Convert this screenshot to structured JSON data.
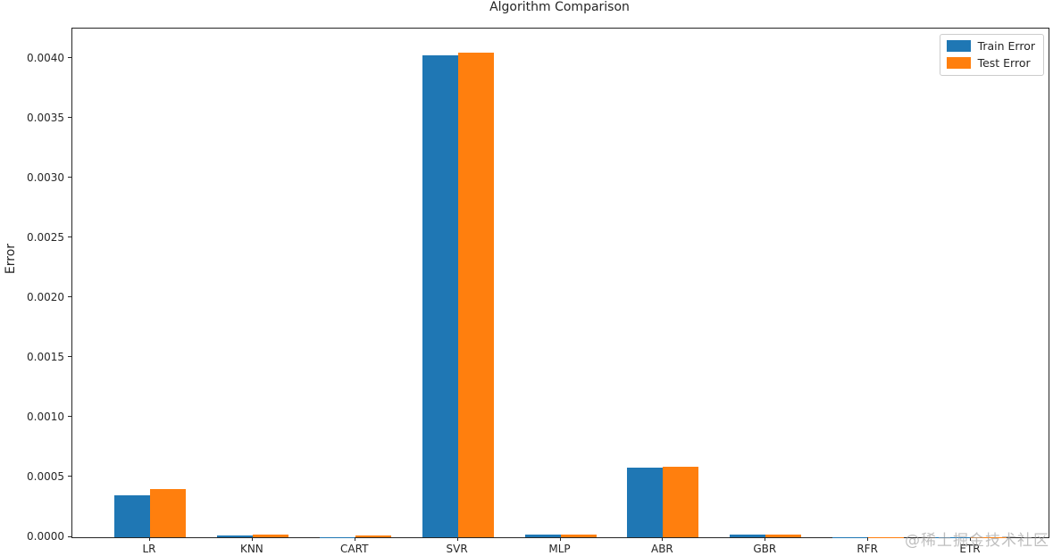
{
  "chart_data": {
    "type": "bar",
    "title": "Algorithm Comparison",
    "xlabel": "",
    "ylabel": "Error",
    "categories": [
      "LR",
      "KNN",
      "CART",
      "SVR",
      "MLP",
      "ABR",
      "GBR",
      "RFR",
      "ETR"
    ],
    "series": [
      {
        "name": "Train Error",
        "color": "#1f77b4",
        "values": [
          0.00035,
          1.5e-05,
          1e-06,
          0.00403,
          2.2e-05,
          0.00058,
          2.2e-05,
          1e-06,
          1e-06
        ]
      },
      {
        "name": "Test Error",
        "color": "#ff7f0e",
        "values": [
          0.0004,
          2e-05,
          1.3e-05,
          0.00405,
          2e-05,
          0.00059,
          2e-05,
          1e-06,
          1e-06
        ]
      }
    ],
    "ylim": [
      0,
      0.004253
    ],
    "yticks": [
      {
        "value": 0.0,
        "label": "0.0000"
      },
      {
        "value": 0.0005,
        "label": "0.0005"
      },
      {
        "value": 0.001,
        "label": "0.0010"
      },
      {
        "value": 0.0015,
        "label": "0.0015"
      },
      {
        "value": 0.002,
        "label": "0.0020"
      },
      {
        "value": 0.0025,
        "label": "0.0025"
      },
      {
        "value": 0.003,
        "label": "0.0030"
      },
      {
        "value": 0.0035,
        "label": "0.0035"
      },
      {
        "value": 0.004,
        "label": "0.0040"
      }
    ],
    "grid": false,
    "legend_position": "upper right"
  },
  "watermark": "@稀土掘金技术社区"
}
